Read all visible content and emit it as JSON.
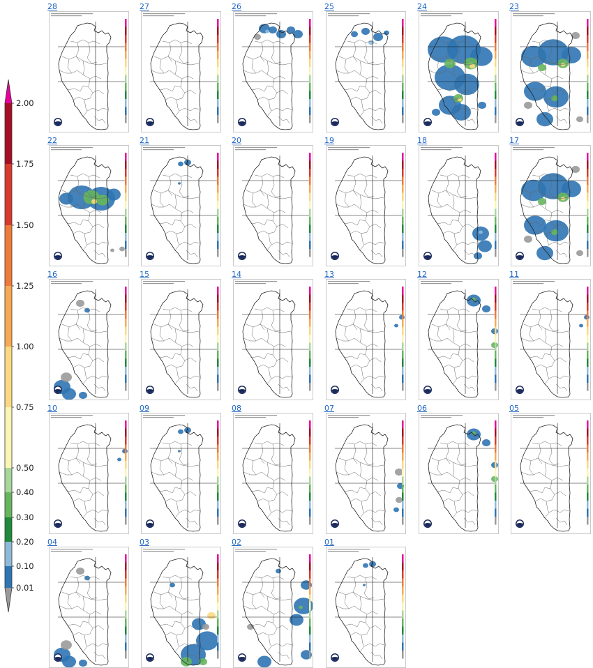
{
  "legend": {
    "ticks": [
      "2.00",
      "1.75",
      "1.50",
      "1.25",
      "1.00",
      "0.75",
      "0.50",
      "0.40",
      "0.30",
      "0.20",
      "0.10",
      "0.01"
    ],
    "colors": {
      "over": "#e8009c",
      "b175_200": "#a50f26",
      "b150_175": "#d93a2b",
      "b125_150": "#ef7a3a",
      "b100_125": "#f7a954",
      "b075_100": "#fbd982",
      "b050_075": "#fbf6b3",
      "b040_050": "#a8d69b",
      "b030_040": "#67b55e",
      "b020_030": "#1f8a3c",
      "b010_020": "#8fb9d9",
      "b001_010": "#2f74b3",
      "under": "#9a9a9a"
    }
  },
  "maps": [
    {
      "day": "28",
      "precip": []
    },
    {
      "day": "27",
      "precip": []
    },
    {
      "day": "26",
      "precip": [
        "north-moderate"
      ]
    },
    {
      "day": "25",
      "precip": [
        "north-light"
      ]
    },
    {
      "day": "24",
      "precip": [
        "widespread-heavy"
      ]
    },
    {
      "day": "23",
      "precip": [
        "widespread-moderate"
      ]
    },
    {
      "day": "22",
      "precip": [
        "central-heavy"
      ]
    },
    {
      "day": "21",
      "precip": [
        "north-spot"
      ]
    },
    {
      "day": "20",
      "precip": []
    },
    {
      "day": "19",
      "precip": []
    },
    {
      "day": "18",
      "precip": [
        "east-moderate"
      ]
    },
    {
      "day": "17",
      "precip": [
        "widespread-moderate"
      ]
    },
    {
      "day": "16",
      "precip": [
        "west-light"
      ]
    },
    {
      "day": "15",
      "precip": []
    },
    {
      "day": "14",
      "precip": []
    },
    {
      "day": "13",
      "precip": [
        "east-spot"
      ]
    },
    {
      "day": "12",
      "precip": [
        "northeast-moderate"
      ]
    },
    {
      "day": "11",
      "precip": [
        "east-spot"
      ]
    },
    {
      "day": "10",
      "precip": [
        "east-spot"
      ]
    },
    {
      "day": "09",
      "precip": [
        "north-spot"
      ]
    },
    {
      "day": "08",
      "precip": []
    },
    {
      "day": "07",
      "precip": [
        "southeast-light"
      ]
    },
    {
      "day": "06",
      "precip": [
        "northeast-moderate"
      ]
    },
    {
      "day": "05",
      "precip": []
    },
    {
      "day": "04",
      "precip": [
        "west-light"
      ]
    },
    {
      "day": "03",
      "precip": [
        "south-moderate"
      ]
    },
    {
      "day": "02",
      "precip": [
        "east-moderate"
      ]
    },
    {
      "day": "01",
      "precip": [
        "north-spot"
      ]
    }
  ]
}
